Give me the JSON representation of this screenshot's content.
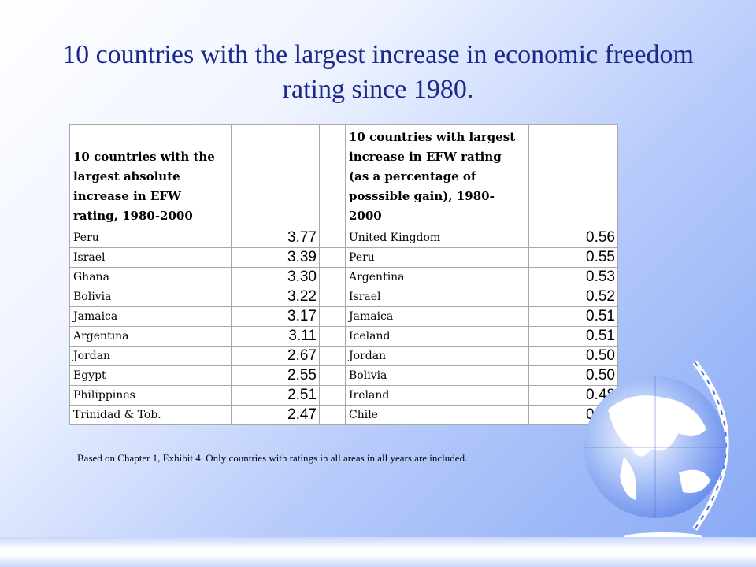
{
  "slide": {
    "title": "10 countries with the largest increase in economic freedom rating since 1980."
  },
  "table": {
    "header": {
      "absolute": "10 countries with the largest absolute increase in EFW rating, 1980-2000",
      "percentage": "10 countries with largest increase in EFW rating (as a percentage of posssible gain), 1980-2000"
    },
    "rows": [
      {
        "country_abs": "Peru",
        "value_abs": "3.77",
        "country_pct": "United Kingdom",
        "value_pct": "0.56"
      },
      {
        "country_abs": "Israel",
        "value_abs": "3.39",
        "country_pct": "Peru",
        "value_pct": "0.55"
      },
      {
        "country_abs": "Ghana",
        "value_abs": "3.30",
        "country_pct": "Argentina",
        "value_pct": "0.53"
      },
      {
        "country_abs": "Bolivia",
        "value_abs": "3.22",
        "country_pct": "Israel",
        "value_pct": "0.52"
      },
      {
        "country_abs": "Jamaica",
        "value_abs": "3.17",
        "country_pct": "Jamaica",
        "value_pct": "0.51"
      },
      {
        "country_abs": "Argentina",
        "value_abs": "3.11",
        "country_pct": "Iceland",
        "value_pct": "0.51"
      },
      {
        "country_abs": "Jordan",
        "value_abs": "2.67",
        "country_pct": "Jordan",
        "value_pct": "0.50"
      },
      {
        "country_abs": "Egypt",
        "value_abs": "2.55",
        "country_pct": "Bolivia",
        "value_pct": "0.50"
      },
      {
        "country_abs": "Philippines",
        "value_abs": "2.51",
        "country_pct": "Ireland",
        "value_pct": "0.48"
      },
      {
        "country_abs": "Trinidad & Tob.",
        "value_abs": "2.47",
        "country_pct": "Chile",
        "value_pct": "0.48"
      }
    ]
  },
  "footnote": "Based on Chapter 1, Exhibit 4.  Only countries with ratings in all areas in all years are included.",
  "decoration": {
    "icon": "globe-icon",
    "colors": {
      "title": "#1b2a8a",
      "globe": "#6f93ef",
      "land": "#ffffff"
    }
  }
}
